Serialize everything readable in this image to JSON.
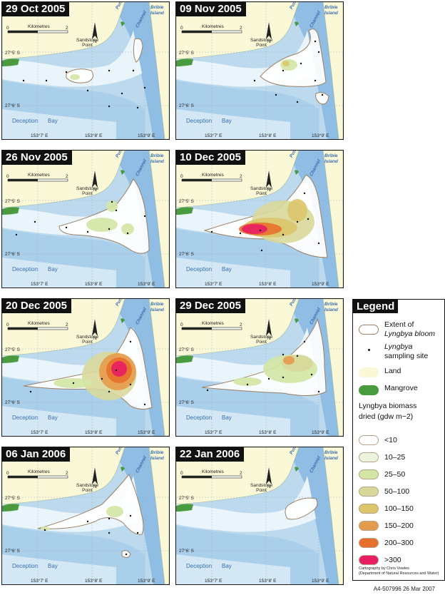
{
  "map_labels": {
    "scale_unit": "Kilometres",
    "scale_start": "0",
    "scale_end": "2",
    "north": "N",
    "sandstone_point": "Sandstone\nPoint",
    "lat_top": "27°5' S",
    "lat_bottom": "27°6' S",
    "lon_a": "153°7' E",
    "lon_b": "153°8' E",
    "lon_c": "153°9' E",
    "deception": "Deception",
    "bay": "Bay",
    "pumicestone": "Pumicestone",
    "channel": "Channel",
    "bribie": "Bribie",
    "island": "Island"
  },
  "panels": [
    {
      "date": "29 Oct 2005"
    },
    {
      "date": "09 Nov 2005"
    },
    {
      "date": "26 Nov 2005"
    },
    {
      "date": "10 Dec 2005"
    },
    {
      "date": "20 Dec 2005"
    },
    {
      "date": "29 Dec 2005"
    },
    {
      "date": "06 Jan 2006"
    },
    {
      "date": "22 Jan 2006"
    }
  ],
  "legend": {
    "title": "Legend",
    "extent_1": "Extent of",
    "extent_2": "Lyngbya bloom",
    "site_1": "Lyngbya",
    "site_2": "sampling site",
    "land": "Land",
    "mangrove": "Mangrove",
    "biomass_1": "Lyngbya biomass",
    "biomass_2": "dried (gdw m−2)",
    "classes": [
      {
        "label": "<10",
        "color": "#ffffff"
      },
      {
        "label": "10–25",
        "color": "#eef3dd"
      },
      {
        "label": "25–50",
        "color": "#d3e6a4"
      },
      {
        "label": "50–100",
        "color": "#d8d89a"
      },
      {
        "label": "100–150",
        "color": "#dcc56a"
      },
      {
        "label": "150–200",
        "color": "#e59b4c"
      },
      {
        "label": "200–300",
        "color": "#e7702c"
      },
      {
        "label": ">300",
        "color": "#e81e63"
      }
    ],
    "credit_1": "Cartography by Chris Vowles",
    "credit_2": "(Department of Natural Resources and Water)"
  },
  "footer": "A4-507996  26 Mar 2007",
  "colors": {
    "water": "#bcd9ee",
    "deep_water": "#9ec6e6",
    "shallow": "#eaf4fb",
    "land": "#fbf8d7",
    "mangrove": "#4a9a3f",
    "extent_stroke": "#9a8064"
  }
}
